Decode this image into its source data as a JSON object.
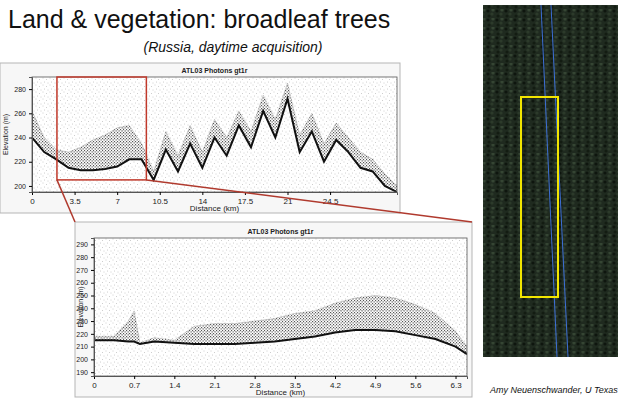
{
  "slide": {
    "title": "Land & vegetation: broadleaf trees",
    "subtitle": "(Russia, daytime acquisition)",
    "credit": "Amy Neuenschwander, U Texas"
  },
  "chart_data": [
    {
      "type": "area",
      "title": "ATL03 Photons gt1r",
      "x_label": "Distance (km)",
      "y_label": "Elevation (m)",
      "x": [
        0,
        1,
        2,
        3,
        4,
        5,
        6,
        7,
        8,
        9,
        10,
        11,
        12,
        13,
        14,
        15,
        16,
        17,
        18,
        19,
        20,
        21,
        22,
        23,
        24,
        25,
        26,
        27,
        28,
        29,
        30
      ],
      "series": [
        {
          "type": "line",
          "color": "#111111",
          "values": [
            240,
            228,
            222,
            215,
            213,
            213,
            214,
            216,
            222,
            222,
            205,
            230,
            212,
            235,
            215,
            240,
            225,
            250,
            232,
            262,
            240,
            272,
            228,
            245,
            220,
            238,
            228,
            215,
            212,
            200,
            195
          ]
        },
        {
          "type": "area",
          "color": "#444444",
          "values": [
            262,
            240,
            230,
            228,
            232,
            238,
            242,
            248,
            250,
            235,
            212,
            245,
            225,
            250,
            228,
            255,
            240,
            262,
            245,
            275,
            255,
            285,
            242,
            260,
            235,
            252,
            240,
            228,
            222,
            210,
            200
          ]
        }
      ],
      "xlim": [
        0,
        30
      ],
      "xticks": [
        0,
        3.5,
        7,
        10.5,
        14,
        17.5,
        21,
        24.5
      ],
      "ylim": [
        195,
        290
      ],
      "yticks": [
        200,
        220,
        240,
        260,
        280
      ],
      "grid": false,
      "highlight": {
        "x": [
          2.05,
          9.4
        ],
        "y": [
          205,
          290
        ]
      }
    },
    {
      "type": "area",
      "title": "ATL03 Photons gt1r",
      "x_label": "Distance (km)",
      "y_label": "Elevation (m)",
      "x": [
        0,
        0.35,
        0.6,
        0.7,
        0.8,
        1.05,
        1.4,
        1.75,
        2.1,
        2.45,
        2.8,
        3.15,
        3.5,
        3.85,
        4.2,
        4.55,
        4.9,
        5.25,
        5.6,
        5.95,
        6.3,
        6.5
      ],
      "series": [
        {
          "type": "line",
          "color": "#111111",
          "values": [
            215,
            215,
            214,
            214,
            212,
            214,
            213,
            212,
            212,
            212,
            213,
            214,
            216,
            218,
            221,
            223,
            223,
            222,
            219,
            216,
            210,
            204
          ]
        },
        {
          "type": "area",
          "color": "#444444",
          "values": [
            218,
            218,
            230,
            238,
            213,
            217,
            215,
            226,
            228,
            228,
            230,
            232,
            236,
            238,
            244,
            248,
            250,
            248,
            243,
            236,
            222,
            210
          ]
        }
      ],
      "xlim": [
        0,
        6.5
      ],
      "xticks": [
        0,
        0.7,
        1.4,
        2.1,
        2.8,
        3.5,
        4.2,
        4.9,
        5.6,
        6.3
      ],
      "ylim": [
        187,
        295
      ],
      "yticks": [
        190,
        200,
        210,
        220,
        230,
        240,
        250,
        260,
        270,
        280,
        290
      ],
      "grid": false
    }
  ]
}
